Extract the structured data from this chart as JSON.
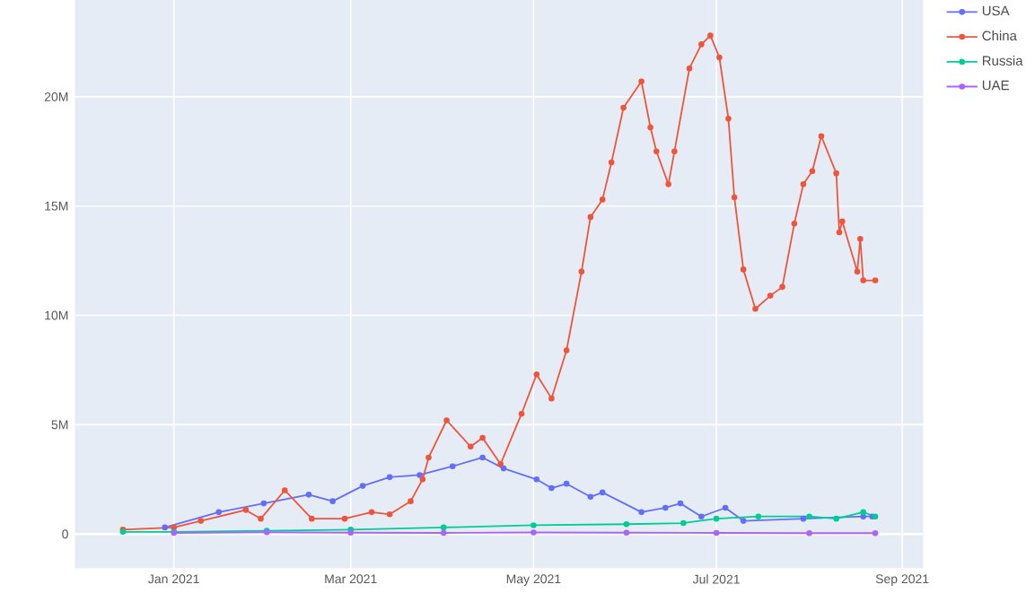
{
  "chart_data": {
    "type": "line",
    "marker": "circle",
    "line_style": "solid",
    "grid": true,
    "legend": "top right",
    "xlim": [
      "2020-11-29",
      "2021-09-08"
    ],
    "ylim": [
      -1560000,
      24500000
    ],
    "xticks": [
      {
        "value": "2021-01-01",
        "label": "Jan 2021"
      },
      {
        "value": "2021-03-01",
        "label": "Mar 2021"
      },
      {
        "value": "2021-05-01",
        "label": "May 2021"
      },
      {
        "value": "2021-07-01",
        "label": "Jul 2021"
      },
      {
        "value": "2021-09-01",
        "label": "Sep 2021"
      }
    ],
    "yticks": [
      0,
      {
        "value": 5000000,
        "label": "5M"
      },
      {
        "value": 10000000,
        "label": "10M"
      },
      {
        "value": 15000000,
        "label": "15M"
      },
      {
        "value": 20000000,
        "label": "20M"
      }
    ],
    "series": [
      {
        "name": "USA",
        "color": "#636efa",
        "x": [
          "2020-12-29",
          "2021-01-16",
          "2021-01-31",
          "2021-02-15",
          "2021-02-23",
          "2021-03-05",
          "2021-03-14",
          "2021-03-24",
          "2021-04-04",
          "2021-04-14",
          "2021-04-21",
          "2021-05-02",
          "2021-05-07",
          "2021-05-12",
          "2021-05-20",
          "2021-05-24",
          "2021-06-06",
          "2021-06-14",
          "2021-06-19",
          "2021-06-26",
          "2021-07-04",
          "2021-07-10",
          "2021-07-30",
          "2021-08-19",
          "2021-08-22"
        ],
        "values": [
          300000,
          1000000,
          1400000,
          1800000,
          1500000,
          2200000,
          2600000,
          2700000,
          3100000,
          3500000,
          3000000,
          2500000,
          2100000,
          2300000,
          1700000,
          1900000,
          1000000,
          1200000,
          1400000,
          800000,
          1200000,
          600000,
          700000,
          800000,
          800000
        ]
      },
      {
        "name": "China",
        "color": "#ef553b",
        "x": [
          "2020-12-15",
          "2021-01-01",
          "2021-01-10",
          "2021-01-25",
          "2021-01-30",
          "2021-02-07",
          "2021-02-16",
          "2021-02-27",
          "2021-03-08",
          "2021-03-14",
          "2021-03-21",
          "2021-03-25",
          "2021-03-27",
          "2021-04-02",
          "2021-04-10",
          "2021-04-14",
          "2021-04-20",
          "2021-04-27",
          "2021-05-02",
          "2021-05-07",
          "2021-05-12",
          "2021-05-17",
          "2021-05-20",
          "2021-05-24",
          "2021-05-27",
          "2021-05-31",
          "2021-06-06",
          "2021-06-09",
          "2021-06-11",
          "2021-06-15",
          "2021-06-17",
          "2021-06-22",
          "2021-06-26",
          "2021-06-29",
          "2021-07-02",
          "2021-07-05",
          "2021-07-07",
          "2021-07-10",
          "2021-07-14",
          "2021-07-19",
          "2021-07-23",
          "2021-07-27",
          "2021-07-30",
          "2021-08-02",
          "2021-08-05",
          "2021-08-10",
          "2021-08-11",
          "2021-08-12",
          "2021-08-17",
          "2021-08-18",
          "2021-08-19",
          "2021-08-23"
        ],
        "values": [
          200000,
          300000,
          600000,
          1100000,
          700000,
          2000000,
          700000,
          700000,
          1000000,
          900000,
          1500000,
          2500000,
          3500000,
          5200000,
          4000000,
          4400000,
          3200000,
          5500000,
          7300000,
          6200000,
          8400000,
          12000000,
          14500000,
          15300000,
          17000000,
          19500000,
          20700000,
          18600000,
          17500000,
          16000000,
          17500000,
          21300000,
          22400000,
          22800000,
          21800000,
          19000000,
          15400000,
          12100000,
          10300000,
          10900000,
          11300000,
          14200000,
          16000000,
          16600000,
          18200000,
          16500000,
          13800000,
          14300000,
          12000000,
          13500000,
          11600000,
          11600000
        ]
      },
      {
        "name": "Russia",
        "color": "#00cc96",
        "x": [
          "2020-12-15",
          "2021-01-01",
          "2021-02-01",
          "2021-03-01",
          "2021-04-01",
          "2021-05-01",
          "2021-06-01",
          "2021-06-20",
          "2021-07-01",
          "2021-07-15",
          "2021-08-01",
          "2021-08-10",
          "2021-08-19",
          "2021-08-23"
        ],
        "values": [
          100000,
          100000,
          150000,
          200000,
          300000,
          400000,
          450000,
          500000,
          700000,
          800000,
          800000,
          700000,
          1000000,
          800000
        ]
      },
      {
        "name": "UAE",
        "color": "#ab63fa",
        "x": [
          "2021-01-01",
          "2021-02-01",
          "2021-03-01",
          "2021-04-01",
          "2021-05-01",
          "2021-06-01",
          "2021-07-01",
          "2021-08-01",
          "2021-08-23"
        ],
        "values": [
          50000,
          80000,
          60000,
          50000,
          70000,
          60000,
          50000,
          40000,
          40000
        ]
      }
    ]
  }
}
